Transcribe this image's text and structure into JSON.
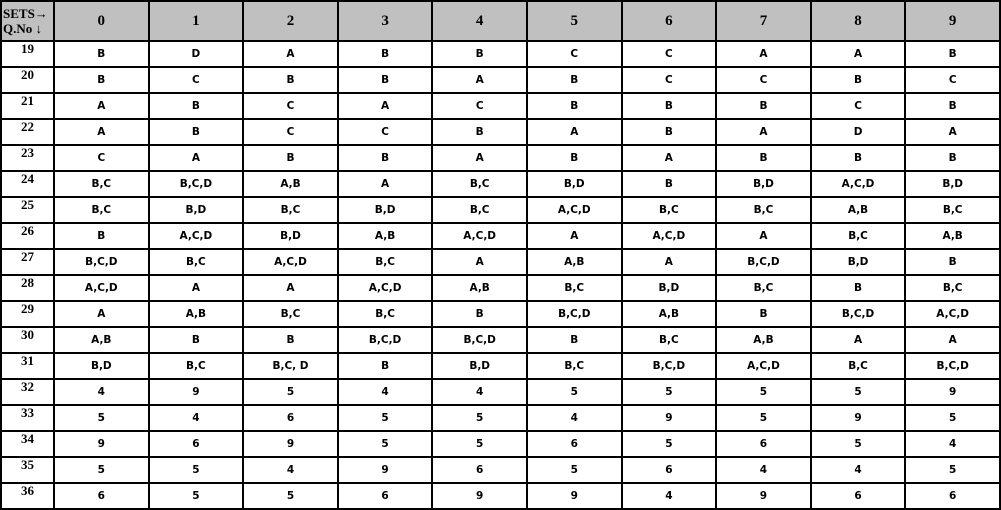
{
  "header": {
    "corner_top": "SETS→",
    "corner_bottom": "Q.No ↓",
    "sets": [
      "0",
      "1",
      "2",
      "3",
      "4",
      "5",
      "6",
      "7",
      "8",
      "9"
    ]
  },
  "rows": [
    {
      "q": "19",
      "answers": [
        "B",
        "D",
        "A",
        "B",
        "B",
        "C",
        "C",
        "A",
        "A",
        "B"
      ]
    },
    {
      "q": "20",
      "answers": [
        "B",
        "C",
        "B",
        "B",
        "A",
        "B",
        "C",
        "C",
        "B",
        "C"
      ]
    },
    {
      "q": "21",
      "answers": [
        "A",
        "B",
        "C",
        "A",
        "C",
        "B",
        "B",
        "B",
        "C",
        "B"
      ]
    },
    {
      "q": "22",
      "answers": [
        "A",
        "B",
        "C",
        "C",
        "B",
        "A",
        "B",
        "A",
        "D",
        "A"
      ]
    },
    {
      "q": "23",
      "answers": [
        "C",
        "A",
        "B",
        "B",
        "A",
        "B",
        "A",
        "B",
        "B",
        "B"
      ]
    },
    {
      "q": "24",
      "answers": [
        "B,C",
        "B,C,D",
        "A,B",
        "A",
        "B,C",
        "B,D",
        "B",
        "B,D",
        "A,C,D",
        "B,D"
      ]
    },
    {
      "q": "25",
      "answers": [
        "B,C",
        "B,D",
        "B,C",
        "B,D",
        "B,C",
        "A,C,D",
        "B,C",
        "B,C",
        "A,B",
        "B,C"
      ]
    },
    {
      "q": "26",
      "answers": [
        "B",
        "A,C,D",
        "B,D",
        "A,B",
        "A,C,D",
        "A",
        "A,C,D",
        "A",
        "B,C",
        "A,B"
      ]
    },
    {
      "q": "27",
      "answers": [
        "B,C,D",
        "B,C",
        "A,C,D",
        "B,C",
        "A",
        "A,B",
        "A",
        "B,C,D",
        "B,D",
        "B"
      ]
    },
    {
      "q": "28",
      "answers": [
        "A,C,D",
        "A",
        "A",
        "A,C,D",
        "A,B",
        "B,C",
        "B,D",
        "B,C",
        "B",
        "B,C"
      ]
    },
    {
      "q": "29",
      "answers": [
        "A",
        "A,B",
        "B,C",
        "B,C",
        "B",
        "B,C,D",
        "A,B",
        "B",
        "B,C,D",
        "A,C,D"
      ]
    },
    {
      "q": "30",
      "answers": [
        "A,B",
        "B",
        "B",
        "B,C,D",
        "B,C,D",
        "B",
        "B,C",
        "A,B",
        "A",
        "A"
      ]
    },
    {
      "q": "31",
      "answers": [
        "B,D",
        "B,C",
        "B,C, D",
        "B",
        "B,D",
        "B,C",
        "B,C,D",
        "A,C,D",
        "B,C",
        "B,C,D"
      ]
    },
    {
      "q": "32",
      "answers": [
        "4",
        "9",
        "5",
        "4",
        "4",
        "5",
        "5",
        "5",
        "5",
        "9"
      ]
    },
    {
      "q": "33",
      "answers": [
        "5",
        "4",
        "6",
        "5",
        "5",
        "4",
        "9",
        "5",
        "9",
        "5"
      ]
    },
    {
      "q": "34",
      "answers": [
        "9",
        "6",
        "9",
        "5",
        "5",
        "6",
        "5",
        "6",
        "5",
        "4"
      ]
    },
    {
      "q": "35",
      "answers": [
        "5",
        "5",
        "4",
        "9",
        "6",
        "5",
        "6",
        "4",
        "4",
        "5"
      ]
    },
    {
      "q": "36",
      "answers": [
        "6",
        "5",
        "5",
        "6",
        "9",
        "9",
        "4",
        "9",
        "6",
        "6"
      ]
    }
  ]
}
